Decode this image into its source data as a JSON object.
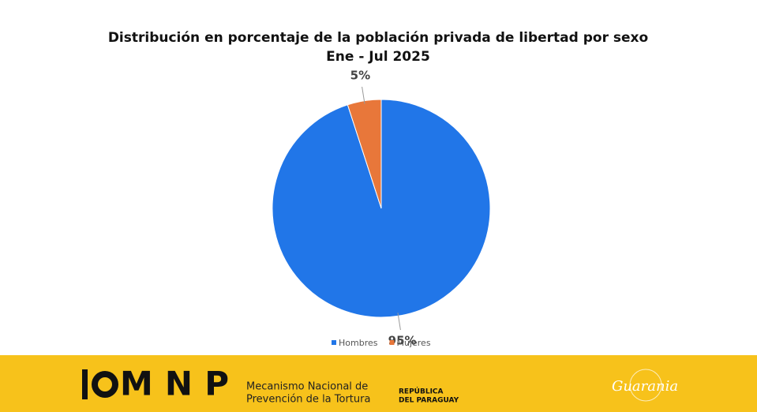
{
  "chart_data": {
    "type": "pie",
    "title": "Distribución en porcentaje de la población privada de libertad por sexo",
    "subtitle": "Ene - Jul 2025",
    "categories": [
      "Hombres",
      "Mujeres"
    ],
    "values": [
      95,
      5
    ],
    "value_labels": [
      "95%",
      "5%"
    ],
    "colors": [
      "#2176e8",
      "#e8773a"
    ],
    "legend": "bottom"
  },
  "footer": {
    "logo": "MNP",
    "org_line1": "Mecanismo Nacional de",
    "org_line2": "Prevención de la Tortura",
    "gov_line1": "REPÚBLICA",
    "gov_line2": "DEL PARAGUAY",
    "brand": "Guarania"
  }
}
